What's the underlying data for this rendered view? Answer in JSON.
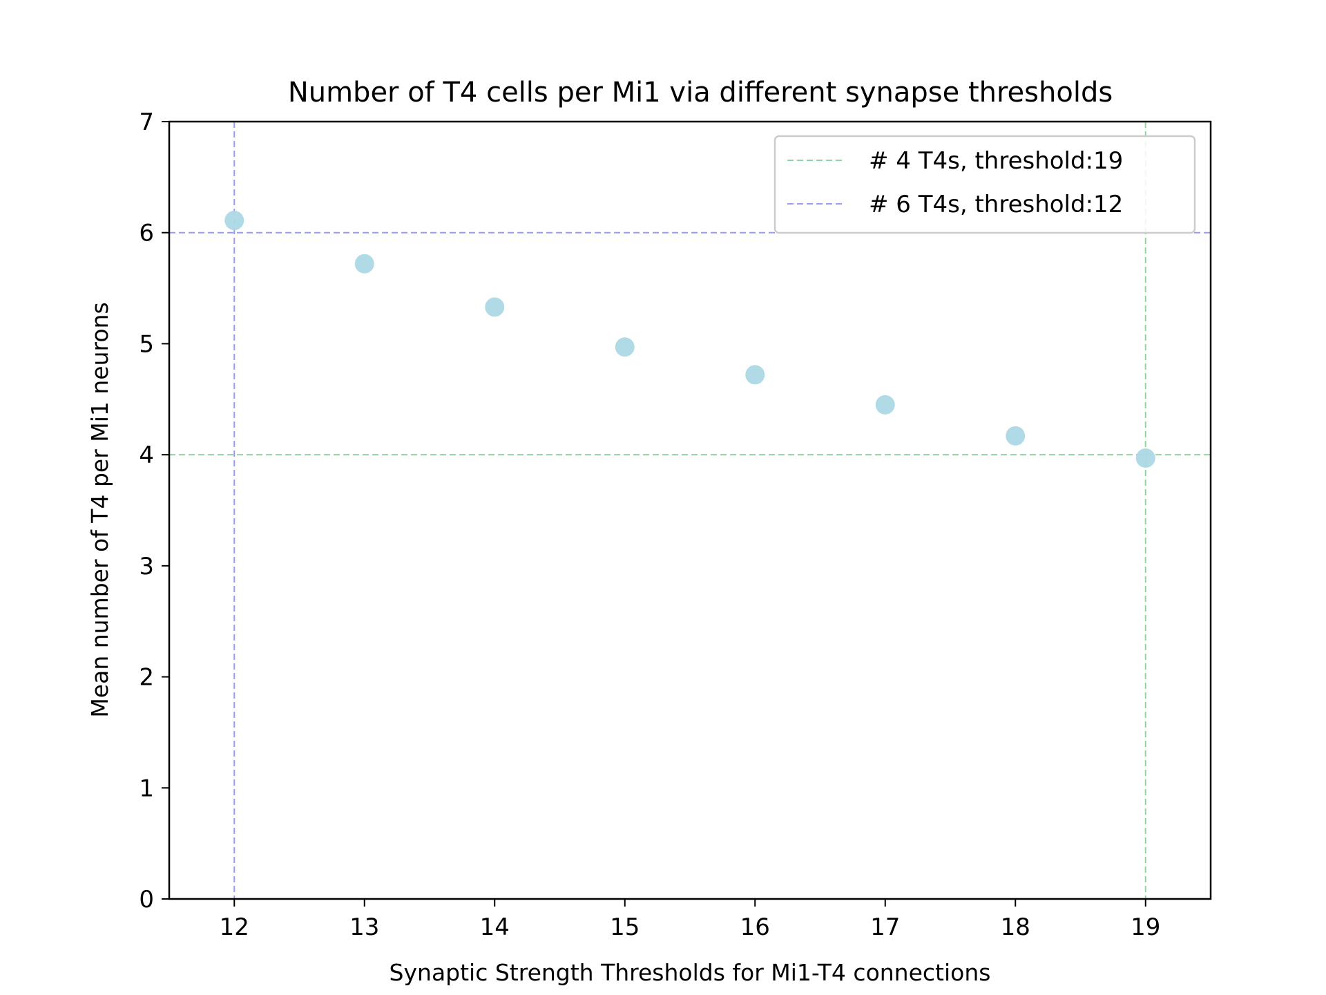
{
  "chart_data": {
    "type": "scatter",
    "title": "Number of T4 cells per Mi1 via different synapse thresholds",
    "xlabel": "Synaptic Strength Thresholds for Mi1-T4 connections",
    "ylabel": "Mean number of T4 per Mi1 neurons",
    "xlim": [
      11.5,
      19.5
    ],
    "ylim": [
      0,
      7
    ],
    "xticks": [
      12,
      13,
      14,
      15,
      16,
      17,
      18,
      19
    ],
    "yticks": [
      0,
      1,
      2,
      3,
      4,
      5,
      6,
      7
    ],
    "grid": false,
    "legend_position": "top-right",
    "point_color": "#add8e6",
    "series": [
      {
        "x": [
          12,
          13,
          14,
          15,
          16,
          17,
          18,
          19
        ],
        "y": [
          6.11,
          5.72,
          5.33,
          4.97,
          4.72,
          4.45,
          4.17,
          3.97
        ]
      }
    ],
    "reference_lines": [
      {
        "label": "# 4 T4s, threshold:19",
        "color": "#90d5a0",
        "x": 19,
        "y": 4
      },
      {
        "label": "# 6 T4s, threshold:12",
        "color": "#9a9af0",
        "x": 12,
        "y": 6
      }
    ]
  }
}
